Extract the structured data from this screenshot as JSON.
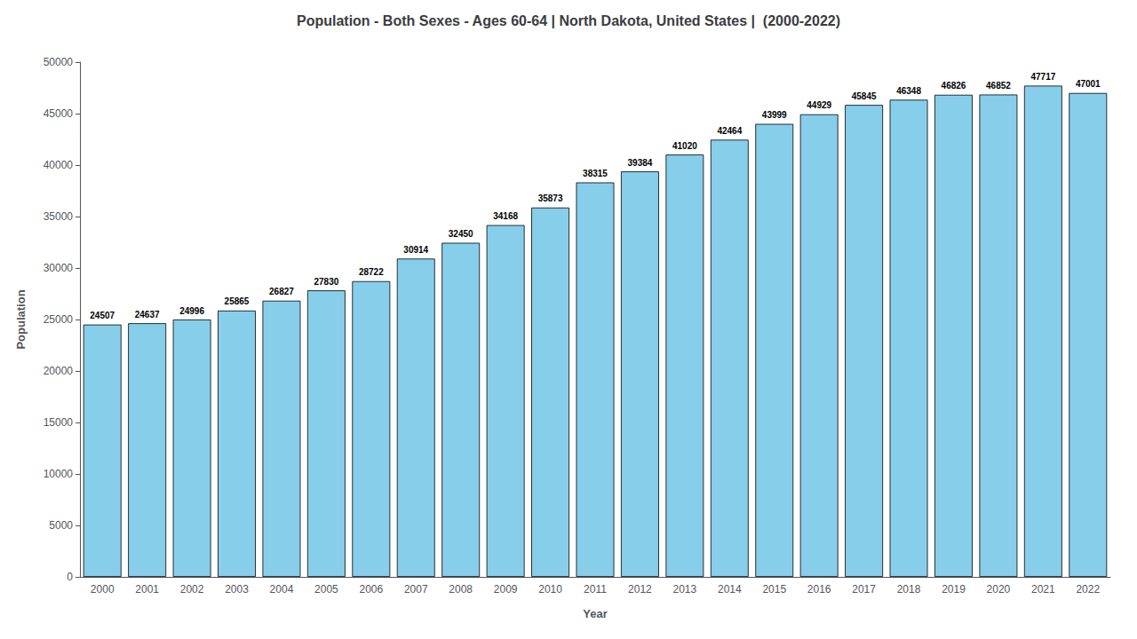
{
  "chart_data": {
    "type": "bar",
    "title": "Population - Both Sexes - Ages 60-64 | North Dakota, United States |  (2000-2022)",
    "xlabel": "Year",
    "ylabel": "Population",
    "categories": [
      "2000",
      "2001",
      "2002",
      "2003",
      "2004",
      "2005",
      "2006",
      "2007",
      "2008",
      "2009",
      "2010",
      "2011",
      "2012",
      "2013",
      "2014",
      "2015",
      "2016",
      "2017",
      "2018",
      "2019",
      "2020",
      "2021",
      "2022"
    ],
    "values": [
      24507,
      24637,
      24996,
      25865,
      26827,
      27830,
      28722,
      30914,
      32450,
      34168,
      35873,
      38315,
      39384,
      41020,
      42464,
      43999,
      44929,
      45845,
      46348,
      46826,
      46852,
      47717,
      47001
    ],
    "color": "#87CEEB",
    "ylim": [
      0,
      50000
    ],
    "yticks": [
      0,
      5000,
      10000,
      15000,
      20000,
      25000,
      30000,
      35000,
      40000,
      45000,
      50000
    ],
    "grid": false,
    "data_labels": true
  }
}
